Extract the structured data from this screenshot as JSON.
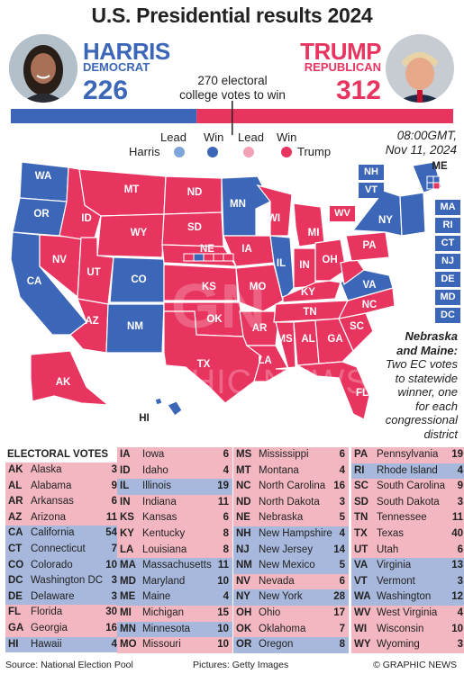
{
  "title": "U.S. Presidential results 2024",
  "harris": {
    "name": "HARRIS",
    "party": "DEMOCRAT",
    "votes": "226"
  },
  "trump": {
    "name": "TRUMP",
    "party": "REPUBLICAN",
    "votes": "312"
  },
  "threshold_text": [
    "270 electoral",
    "college votes to win"
  ],
  "colors": {
    "dem_win": "#3c66b8",
    "dem_lead": "#7fa6dc",
    "rep_win": "#e83560",
    "rep_lead": "#f2a2b4"
  },
  "legend": {
    "lead": "Lead",
    "win": "Win",
    "harris": "Harris",
    "trump": "Trump"
  },
  "date": [
    "08:00GMT,",
    "Nov 11, 2024"
  ],
  "note": {
    "heading": [
      "Nebraska",
      "and Maine:"
    ],
    "body": [
      "Two EC votes",
      "to statewide",
      "winner, one",
      "for each",
      "congressional",
      "district"
    ]
  },
  "map_labels": [
    "WA",
    "OR",
    "CA",
    "NV",
    "ID",
    "MT",
    "WY",
    "UT",
    "AZ",
    "CO",
    "NM",
    "ND",
    "SD",
    "NE",
    "KS",
    "OK",
    "TX",
    "MN",
    "IA",
    "MO",
    "AR",
    "LA",
    "WI",
    "IL",
    "MI",
    "IN",
    "OH",
    "KY",
    "TN",
    "MS",
    "AL",
    "GA",
    "FL",
    "SC",
    "NC",
    "VA",
    "PA",
    "NY",
    "ME",
    "AK",
    "HI",
    "WV"
  ],
  "east_boxes": [
    "NH",
    "VT",
    "MA",
    "RI",
    "CT",
    "NJ",
    "DE",
    "MD",
    "DC"
  ],
  "watermark": {
    "logo": "GN",
    "text": "GRAPHIC NEWS"
  },
  "table_header": "ELECTORAL VOTES",
  "ev_table": [
    [
      [
        "AK",
        "Alaska",
        "3",
        "r"
      ],
      [
        "AL",
        "Alabama",
        "9",
        "r"
      ],
      [
        "AR",
        "Arkansas",
        "6",
        "r"
      ],
      [
        "AZ",
        "Arizona",
        "11",
        "r"
      ],
      [
        "CA",
        "California",
        "54",
        "b"
      ],
      [
        "CT",
        "Connecticut",
        "7",
        "b"
      ],
      [
        "CO",
        "Colorado",
        "10",
        "b"
      ],
      [
        "DC",
        "Washington DC",
        "3",
        "b"
      ],
      [
        "DE",
        "Delaware",
        "3",
        "b"
      ],
      [
        "FL",
        "Florida",
        "30",
        "r"
      ],
      [
        "GA",
        "Georgia",
        "16",
        "r"
      ],
      [
        "HI",
        "Hawaii",
        "4",
        "b"
      ]
    ],
    [
      [
        "IA",
        "Iowa",
        "6",
        "r"
      ],
      [
        "ID",
        "Idaho",
        "4",
        "r"
      ],
      [
        "IL",
        "Illinois",
        "19",
        "b"
      ],
      [
        "IN",
        "Indiana",
        "11",
        "r"
      ],
      [
        "KS",
        "Kansas",
        "6",
        "r"
      ],
      [
        "KY",
        "Kentucky",
        "8",
        "r"
      ],
      [
        "LA",
        "Louisiana",
        "8",
        "r"
      ],
      [
        "MA",
        "Massachusetts",
        "11",
        "b"
      ],
      [
        "MD",
        "Maryland",
        "10",
        "b"
      ],
      [
        "ME",
        "Maine",
        "4",
        "b"
      ],
      [
        "MI",
        "Michigan",
        "15",
        "r"
      ],
      [
        "MN",
        "Minnesota",
        "10",
        "b"
      ],
      [
        "MO",
        "Missouri",
        "10",
        "r"
      ]
    ],
    [
      [
        "MS",
        "Mississippi",
        "6",
        "r"
      ],
      [
        "MT",
        "Montana",
        "4",
        "r"
      ],
      [
        "NC",
        "North Carolina",
        "16",
        "r"
      ],
      [
        "ND",
        "North Dakota",
        "3",
        "r"
      ],
      [
        "NE",
        "Nebraska",
        "5",
        "r"
      ],
      [
        "NH",
        "New Hampshire",
        "4",
        "b"
      ],
      [
        "NJ",
        "New Jersey",
        "14",
        "b"
      ],
      [
        "NM",
        "New Mexico",
        "5",
        "b"
      ],
      [
        "NV",
        "Nevada",
        "6",
        "r"
      ],
      [
        "NY",
        "New York",
        "28",
        "b"
      ],
      [
        "OH",
        "Ohio",
        "17",
        "r"
      ],
      [
        "OK",
        "Oklahoma",
        "7",
        "r"
      ],
      [
        "OR",
        "Oregon",
        "8",
        "b"
      ]
    ],
    [
      [
        "PA",
        "Pennsylvania",
        "19",
        "r"
      ],
      [
        "RI",
        "Rhode Island",
        "4",
        "b"
      ],
      [
        "SC",
        "South Carolina",
        "9",
        "r"
      ],
      [
        "SD",
        "South Dakota",
        "3",
        "r"
      ],
      [
        "TN",
        "Tennessee",
        "11",
        "r"
      ],
      [
        "TX",
        "Texas",
        "40",
        "r"
      ],
      [
        "UT",
        "Utah",
        "6",
        "r"
      ],
      [
        "VA",
        "Virginia",
        "13",
        "b"
      ],
      [
        "VT",
        "Vermont",
        "3",
        "b"
      ],
      [
        "WA",
        "Washington",
        "12",
        "b"
      ],
      [
        "WV",
        "West Virginia",
        "4",
        "r"
      ],
      [
        "WI",
        "Wisconsin",
        "10",
        "r"
      ],
      [
        "WY",
        "Wyoming",
        "3",
        "r"
      ]
    ]
  ],
  "footer": {
    "source": "Source: National Election Pool",
    "pictures": "Pictures: Getty Images",
    "credit": "© GRAPHIC NEWS"
  }
}
